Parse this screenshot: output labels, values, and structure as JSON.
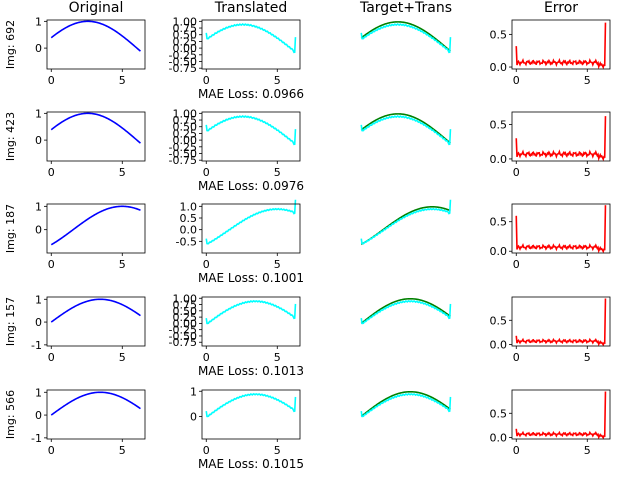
{
  "column_titles": [
    "Original",
    "Translated",
    "Target+Trans",
    "Error"
  ],
  "colors": {
    "original": "#0000ff",
    "translated": "#00ffff",
    "target": "#008000",
    "error": "#ff0000",
    "axis": "#000000"
  },
  "chart_data": [
    {
      "row_label": "Img: 692",
      "mae_caption": "MAE Loss: 0.0966",
      "original": {
        "type": "line",
        "x_range": [
          0,
          6.28
        ],
        "phase": 0.4,
        "ylim": [
          -0.78,
          1.05
        ],
        "yticks": [
          "1",
          "0"
        ],
        "ytick_values": [
          1,
          0
        ],
        "xticks": [
          "0",
          "5"
        ],
        "xtick_values": [
          0,
          5
        ]
      },
      "translated": {
        "type": "line",
        "ylim": [
          -0.78,
          1.05
        ],
        "yticks": [
          "1.00",
          "0.75",
          "0.50",
          "0.25",
          "0.00",
          "-0.25",
          "-0.50",
          "-0.75"
        ],
        "ytick_values": [
          1.0,
          0.75,
          0.5,
          0.25,
          0.0,
          -0.25,
          -0.5,
          -0.75
        ],
        "xticks": [
          "0",
          "5"
        ],
        "xtick_values": [
          0,
          5
        ]
      },
      "error": {
        "type": "line",
        "ylim": [
          -0.03,
          0.72
        ],
        "yticks": [
          "0.5",
          "0.0"
        ],
        "ytick_values": [
          0.5,
          0.0
        ],
        "xticks": [
          "0",
          "5"
        ],
        "xtick_values": [
          0,
          5
        ],
        "start_spike": 0.32,
        "end_spike": 0.68
      }
    },
    {
      "row_label": "Img: 423",
      "mae_caption": "MAE Loss: 0.0976",
      "original": {
        "type": "line",
        "x_range": [
          0,
          6.28
        ],
        "phase": 0.4,
        "ylim": [
          -0.78,
          1.05
        ],
        "yticks": [
          "1",
          "0"
        ],
        "ytick_values": [
          1,
          0
        ],
        "xticks": [
          "0",
          "5"
        ],
        "xtick_values": [
          0,
          5
        ]
      },
      "translated": {
        "type": "line",
        "ylim": [
          -0.78,
          1.05
        ],
        "yticks": [
          "1.00",
          "0.75",
          "0.50",
          "0.25",
          "0.00",
          "-0.25",
          "-0.50",
          "-0.75"
        ],
        "ytick_values": [
          1.0,
          0.75,
          0.5,
          0.25,
          0.0,
          -0.25,
          -0.5,
          -0.75
        ],
        "xticks": [
          "0",
          "5"
        ],
        "xtick_values": [
          0,
          5
        ]
      },
      "error": {
        "type": "line",
        "ylim": [
          -0.03,
          0.68
        ],
        "yticks": [
          "0.5",
          "0.0"
        ],
        "ytick_values": [
          0.5,
          0.0
        ],
        "xticks": [
          "0",
          "5"
        ],
        "xtick_values": [
          0,
          5
        ],
        "start_spike": 0.3,
        "end_spike": 0.62
      }
    },
    {
      "row_label": "Img: 187",
      "mae_caption": "MAE Loss: 0.1001",
      "original": {
        "type": "line",
        "x_range": [
          0,
          6.28
        ],
        "phase": -0.7,
        "ylim": [
          -1.0,
          1.1
        ],
        "yticks": [
          "1",
          "0"
        ],
        "ytick_values": [
          1,
          0
        ],
        "xticks": [
          "0",
          "5"
        ],
        "xtick_values": [
          0,
          5
        ]
      },
      "translated": {
        "type": "line",
        "ylim": [
          -1.0,
          1.1
        ],
        "yticks": [
          "1.0",
          "0.5",
          "0.0",
          "-0.5"
        ],
        "ytick_values": [
          1.0,
          0.5,
          0.0,
          -0.5
        ],
        "xticks": [
          "0",
          "5"
        ],
        "xtick_values": [
          0,
          5
        ]
      },
      "error": {
        "type": "line",
        "ylim": [
          -0.03,
          0.8
        ],
        "yticks": [
          "0.5",
          "0.0"
        ],
        "ytick_values": [
          0.5,
          0.0
        ],
        "xticks": [
          "0",
          "5"
        ],
        "xtick_values": [
          0,
          5
        ],
        "start_spike": 0.6,
        "end_spike": 0.78
      }
    },
    {
      "row_label": "Img: 157",
      "mae_caption": "MAE Loss: 0.1013",
      "original": {
        "type": "line",
        "x_range": [
          0,
          6.28
        ],
        "phase": 0.0,
        "ylim": [
          -1.05,
          1.1
        ],
        "yticks": [
          "1",
          "0",
          "-1"
        ],
        "ytick_values": [
          1,
          0,
          -1
        ],
        "xticks": [
          "0",
          "5"
        ],
        "xtick_values": [
          0,
          5
        ]
      },
      "translated": {
        "type": "line",
        "ylim": [
          -0.9,
          1.05
        ],
        "yticks": [
          "1.00",
          "0.75",
          "0.50",
          "0.25",
          "0.00",
          "-0.25",
          "-0.50",
          "-0.75"
        ],
        "ytick_values": [
          1.0,
          0.75,
          0.5,
          0.25,
          0.0,
          -0.25,
          -0.5,
          -0.75
        ],
        "xticks": [
          "0",
          "5"
        ],
        "xtick_values": [
          0,
          5
        ]
      },
      "error": {
        "type": "line",
        "ylim": [
          -0.03,
          0.98
        ],
        "yticks": [
          "0.5",
          "0.0"
        ],
        "ytick_values": [
          0.5,
          0.0
        ],
        "xticks": [
          "0",
          "5"
        ],
        "xtick_values": [
          0,
          5
        ],
        "start_spike": 0.18,
        "end_spike": 0.95
      }
    },
    {
      "row_label": "Img: 566",
      "mae_caption": "MAE Loss: 0.1015",
      "original": {
        "type": "line",
        "x_range": [
          0,
          6.28
        ],
        "phase": 0.0,
        "ylim": [
          -1.05,
          1.1
        ],
        "yticks": [
          "1",
          "0",
          "-1"
        ],
        "ytick_values": [
          1,
          0,
          -1
        ],
        "xticks": [
          "0",
          "5"
        ],
        "xtick_values": [
          0,
          5
        ]
      },
      "translated": {
        "type": "line",
        "ylim": [
          -0.9,
          1.05
        ],
        "yticks": [
          "1",
          "0"
        ],
        "ytick_values": [
          1,
          0
        ],
        "xticks": [
          "0",
          "5"
        ],
        "xtick_values": [
          0,
          5
        ]
      },
      "error": {
        "type": "line",
        "ylim": [
          -0.03,
          0.98
        ],
        "yticks": [
          "0.5",
          "0.0"
        ],
        "ytick_values": [
          0.5,
          0.0
        ],
        "xticks": [
          "0",
          "5"
        ],
        "xtick_values": [
          0,
          5
        ],
        "start_spike": 0.18,
        "end_spike": 0.95
      }
    }
  ]
}
